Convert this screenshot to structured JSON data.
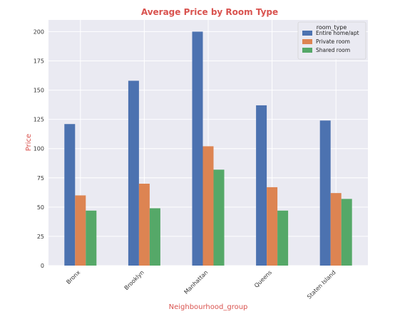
{
  "chart_data": {
    "type": "bar",
    "title": "Average Price by Room Type",
    "xlabel": "Neighbourhood_group",
    "ylabel": "Price",
    "categories": [
      "Bronx",
      "Brooklyn",
      "Manhattan",
      "Queens",
      "Staten Island"
    ],
    "series": [
      {
        "name": "Entire home/apt",
        "values": [
          121,
          158,
          200,
          137,
          124
        ],
        "color": "#4c72b0"
      },
      {
        "name": "Private room",
        "values": [
          60,
          70,
          102,
          67,
          62
        ],
        "color": "#dd8452"
      },
      {
        "name": "Shared room",
        "values": [
          47,
          49,
          82,
          47,
          57
        ],
        "color": "#55a868"
      }
    ],
    "ylim": [
      0,
      210
    ],
    "yticks": [
      0,
      25,
      50,
      75,
      100,
      125,
      150,
      175,
      200
    ],
    "legend_title": "room_type",
    "legend_position": "top-right",
    "grid": true,
    "title_color": "#d9534f",
    "label_color": "#d9534f",
    "background_color": "#eaeaf2"
  }
}
